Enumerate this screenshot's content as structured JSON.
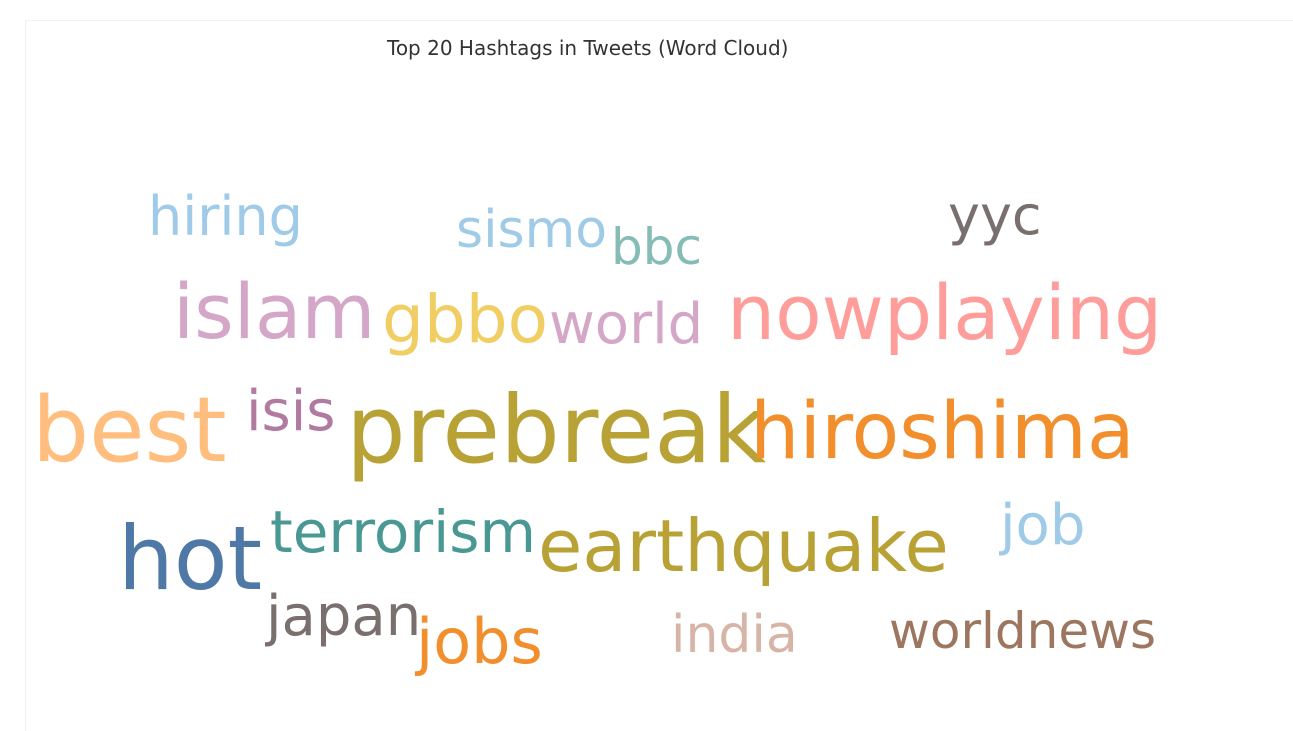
{
  "chart_data": {
    "type": "wordcloud",
    "title": "Top 20 Hashtags in Tweets (Word Cloud)",
    "words": [
      {
        "text": "prebreak",
        "color": "#b9a235"
      },
      {
        "text": "best",
        "color": "#ffbe7d"
      },
      {
        "text": "hot",
        "color": "#4e79a7"
      },
      {
        "text": "hiroshima",
        "color": "#f28e2b"
      },
      {
        "text": "nowplaying",
        "color": "#ff9d9a"
      },
      {
        "text": "earthquake",
        "color": "#b9a235"
      },
      {
        "text": "islam",
        "color": "#d4a6c8"
      },
      {
        "text": "gbbo",
        "color": "#f1ce63"
      },
      {
        "text": "jobs",
        "color": "#f28e2b"
      },
      {
        "text": "terrorism",
        "color": "#499894"
      },
      {
        "text": "japan",
        "color": "#79706e"
      },
      {
        "text": "world",
        "color": "#d4a6c8"
      },
      {
        "text": "worldnews",
        "color": "#9d7660"
      },
      {
        "text": "job",
        "color": "#a0cbe8"
      },
      {
        "text": "hiring",
        "color": "#a0cbe8"
      },
      {
        "text": "india",
        "color": "#d7b5a6"
      },
      {
        "text": "isis",
        "color": "#b07aa1"
      },
      {
        "text": "sismo",
        "color": "#a0cbe8"
      },
      {
        "text": "yyc",
        "color": "#79706e"
      },
      {
        "text": "bbc",
        "color": "#86bcb6"
      }
    ]
  }
}
